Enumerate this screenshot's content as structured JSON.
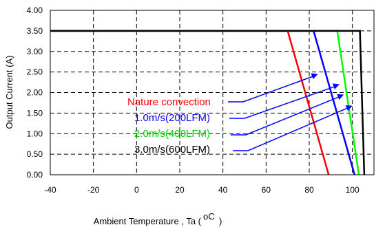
{
  "chart_data": {
    "type": "line",
    "xlabel": "Ambient Temperature , Ta (",
    "xlabel_unit": "oC",
    "xlabel_close": ")",
    "ylabel": "Output Current (A)",
    "xlim": [
      -40,
      110
    ],
    "ylim": [
      0,
      4
    ],
    "x_ticks": [
      -40,
      -20,
      0,
      20,
      40,
      60,
      80,
      100
    ],
    "y_ticks": [
      "0.00",
      "0.50",
      "1.00",
      "1.50",
      "2.00",
      "2.50",
      "3.00",
      "3.50",
      "4.00"
    ],
    "grid": "dashed",
    "series": [
      {
        "name": "Nature convection",
        "color": "#ff0000",
        "x": [
          -40,
          70,
          89
        ],
        "y": [
          3.5,
          3.5,
          0.0
        ],
        "label_pos": [
          84,
          2.45
        ]
      },
      {
        "name": "1.0m/s(200LFM)",
        "color": "#0000ff",
        "x": [
          -40,
          82,
          101
        ],
        "y": [
          3.5,
          3.5,
          0.0
        ],
        "label_pos": [
          94,
          2.2
        ]
      },
      {
        "name": "2.0m/s(400LFM)",
        "color": "#00ff00",
        "x": [
          -40,
          93,
          103
        ],
        "y": [
          3.5,
          3.5,
          0.0
        ],
        "label_pos": [
          96,
          1.95
        ]
      },
      {
        "name": "3.0m/s(600LFM)",
        "color": "#000000",
        "x": [
          -40,
          103.5,
          105.5
        ],
        "y": [
          3.5,
          3.5,
          0.0
        ],
        "label_pos": [
          100,
          1.68
        ]
      }
    ],
    "derating_text_colors": [
      "#ff0000",
      "#0000ff",
      "#00cc00",
      "#000000"
    ],
    "arrow_color": "#0000ff"
  }
}
